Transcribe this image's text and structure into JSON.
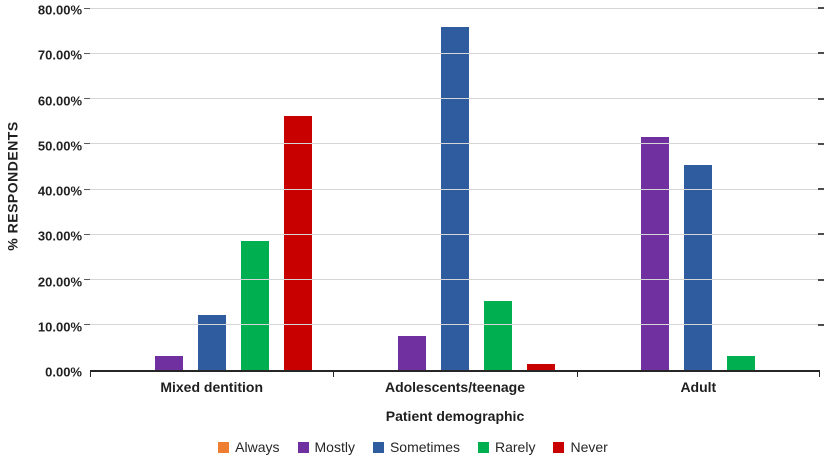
{
  "chart_data": {
    "type": "bar",
    "title": "",
    "xlabel": "Patient demographic",
    "ylabel": "% RESPONDENTS",
    "categories": [
      "Mixed dentition",
      "Adolescents/teenage",
      "Adult"
    ],
    "series": [
      {
        "name": "Always",
        "color": "#ED7D31",
        "values": [
          0,
          0,
          0
        ]
      },
      {
        "name": "Mostly",
        "color": "#7030A0",
        "values": [
          3.0,
          7.5,
          51.4
        ]
      },
      {
        "name": "Sometimes",
        "color": "#2E5C9E",
        "values": [
          12.1,
          75.8,
          45.4
        ]
      },
      {
        "name": "Rarely",
        "color": "#00B050",
        "values": [
          28.6,
          15.2,
          3.0
        ]
      },
      {
        "name": "Never",
        "color": "#C80000",
        "values": [
          56.1,
          1.3,
          0
        ]
      }
    ],
    "ylim": [
      0,
      80
    ],
    "ytick_step": 10,
    "yticks": [
      "0.00%",
      "10.00%",
      "20.00%",
      "30.00%",
      "40.00%",
      "50.00%",
      "60.00%",
      "70.00%",
      "80.00%"
    ],
    "grid": true,
    "legend_position": "bottom"
  }
}
